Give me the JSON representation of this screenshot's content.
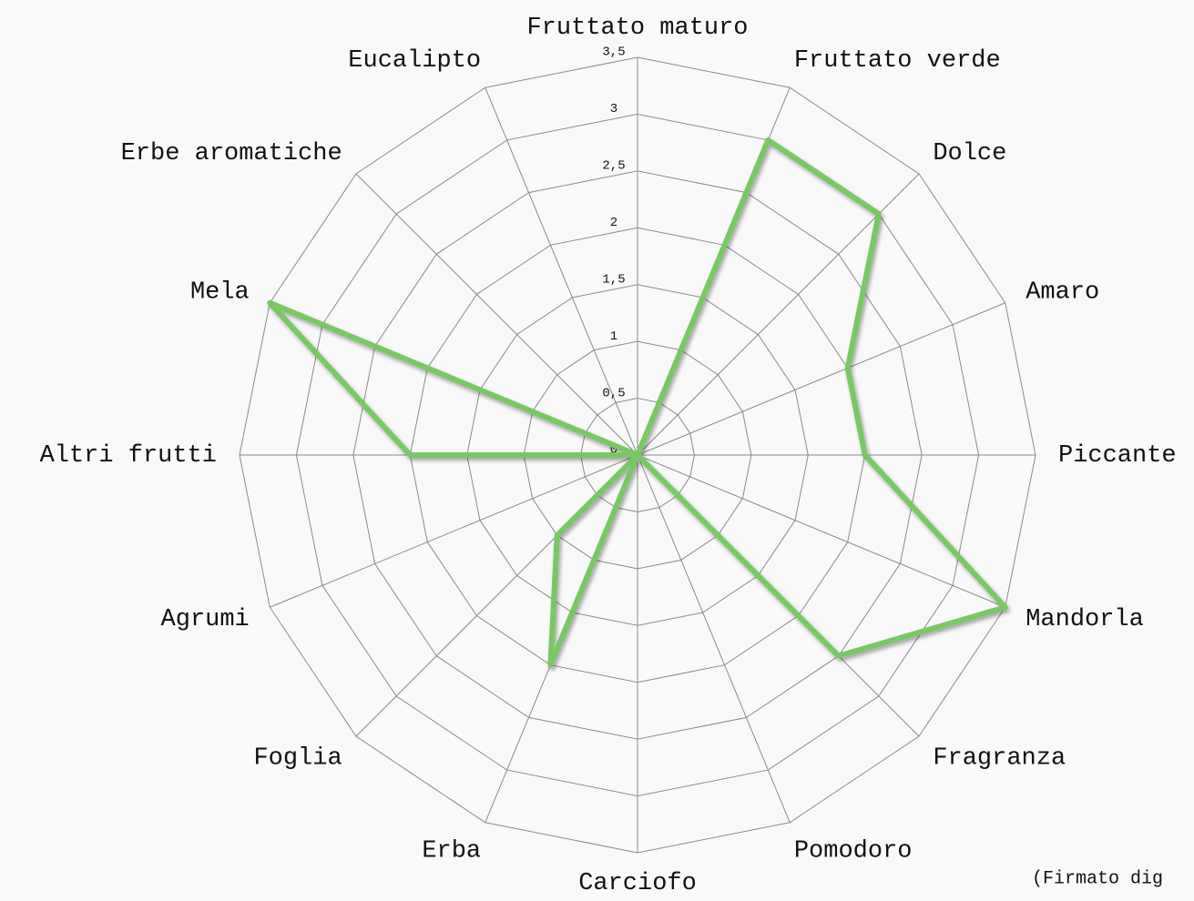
{
  "chart_data": {
    "type": "radar",
    "categories": [
      "Fruttato maturo",
      "Fruttato verde",
      "Dolce",
      "Amaro",
      "Piccante",
      "Mandorla",
      "Fragranza",
      "Pomodoro",
      "Carciofo",
      "Erba",
      "Foglia",
      "Agrumi",
      "Altri frutti",
      "Mela",
      "Erbe aromatiche",
      "Eucalipto"
    ],
    "values": [
      0,
      3,
      3,
      2,
      2,
      3.5,
      2.5,
      0,
      0,
      2,
      1,
      0,
      2,
      3.5,
      0,
      0
    ],
    "color": "#78c864",
    "ylim": [
      0,
      3.5
    ],
    "yticks": [
      0,
      {
        "value": 0.5,
        "label": "0,5"
      },
      1,
      {
        "value": 1.5,
        "label": "1,5"
      },
      2,
      {
        "value": 2.5,
        "label": "2,5"
      },
      3,
      {
        "value": 3.5,
        "label": "3,5"
      }
    ],
    "grid": true,
    "footnote": "(Firmato dig"
  }
}
